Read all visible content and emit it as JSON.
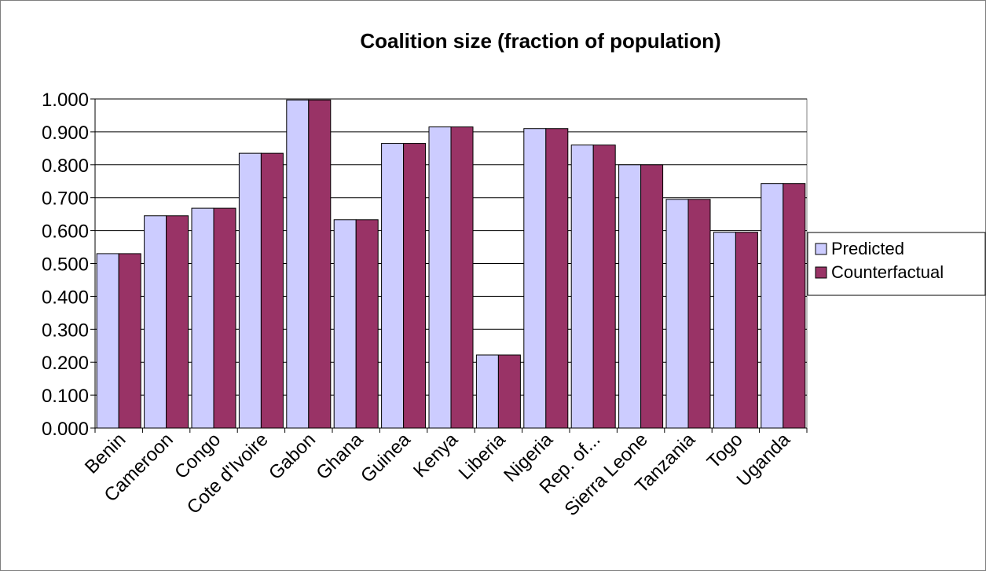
{
  "chart_data": {
    "type": "bar",
    "title": "Coalition size (fraction of population)",
    "xlabel": "",
    "ylabel": "",
    "categories": [
      "Benin",
      "Cameroon",
      "Congo",
      "Cote d'Ivoire",
      "Gabon",
      "Ghana",
      "Guinea",
      "Kenya",
      "Liberia",
      "Nigeria",
      "Rep. of...",
      "Sierra Leone",
      "Tanzania",
      "Togo",
      "Uganda"
    ],
    "series": [
      {
        "name": "Predicted",
        "color": "#ccccff",
        "values": [
          0.53,
          0.645,
          0.668,
          0.835,
          0.997,
          0.633,
          0.865,
          0.915,
          0.222,
          0.91,
          0.86,
          0.8,
          0.695,
          0.595,
          0.743
        ]
      },
      {
        "name": "Counterfactual",
        "color": "#993366",
        "values": [
          0.53,
          0.645,
          0.668,
          0.835,
          0.997,
          0.633,
          0.865,
          0.915,
          0.222,
          0.91,
          0.86,
          0.8,
          0.695,
          0.595,
          0.743
        ]
      }
    ],
    "ylim": [
      0,
      1
    ],
    "yticks": [
      "0.000",
      "0.100",
      "0.200",
      "0.300",
      "0.400",
      "0.500",
      "0.600",
      "0.700",
      "0.800",
      "0.900",
      "1.000"
    ],
    "grid": true,
    "legend": "right"
  }
}
